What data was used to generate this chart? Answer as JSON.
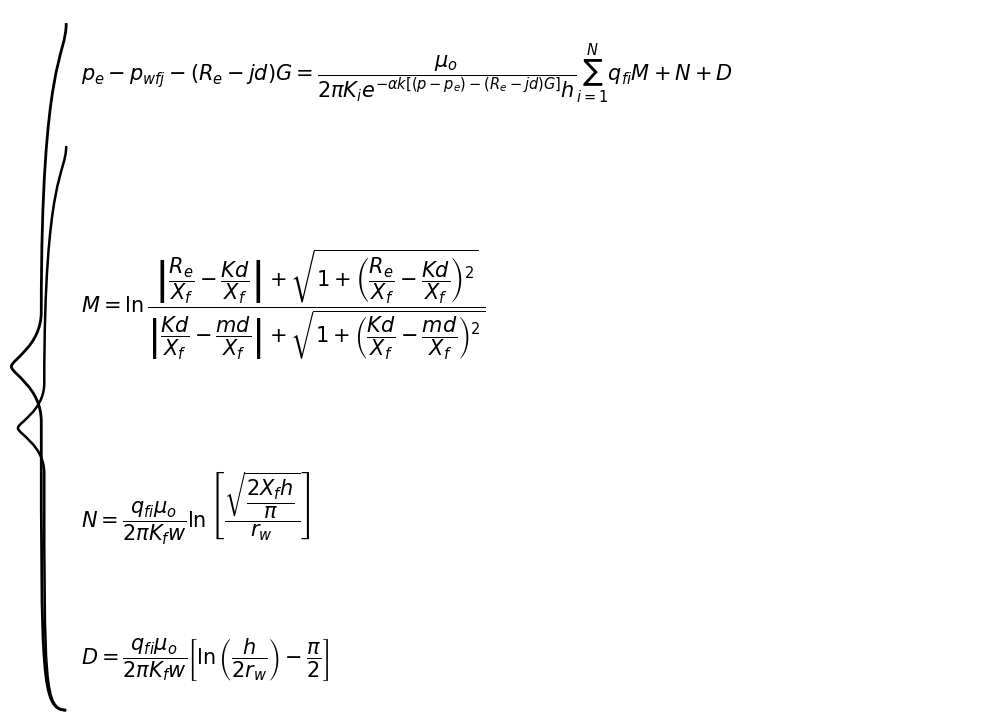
{
  "background_color": "#ffffff",
  "text_color": "#000000",
  "figsize": [
    10.0,
    7.26
  ],
  "dpi": 100,
  "equations": {
    "eq1": "p_e - p_{wfj} - (R_e - jd)G = \\dfrac{\\mu_o}{2\\pi K_i e^{-\\alpha k[(p-p_e)-(R_e-jd)G]}h} \\sum_{i=1}^{N} q_{fi} M + N + D",
    "eq2_label": "M = \\ln \\dfrac{\\left|\\dfrac{R_e}{X_f} - \\dfrac{Kd}{X_f}\\right| + \\sqrt{1 + \\left(\\dfrac{R_e}{X_f} - \\dfrac{Kd}{X_f}\\right)^2}}{\\left|\\dfrac{Kd}{X_f} - \\dfrac{md}{X_f}\\right| + \\sqrt{1 + \\left(\\dfrac{Kd}{X_f} - \\dfrac{md}{X_f}\\right)^2}}",
    "eq3_label": "N = \\dfrac{q_{fi}\\mu_o}{2\\pi K_f w} \\ln \\left[\\dfrac{\\sqrt{\\dfrac{2X_f h}{\\pi}}}{r_w}\\right]",
    "eq4_label": "D = \\dfrac{q_{fi}\\mu_o}{2\\pi K_f w} \\left[\\ln\\left(\\dfrac{h}{2r_w}\\right) - \\dfrac{\\pi}{2}\\right]"
  },
  "fontsize": 16
}
